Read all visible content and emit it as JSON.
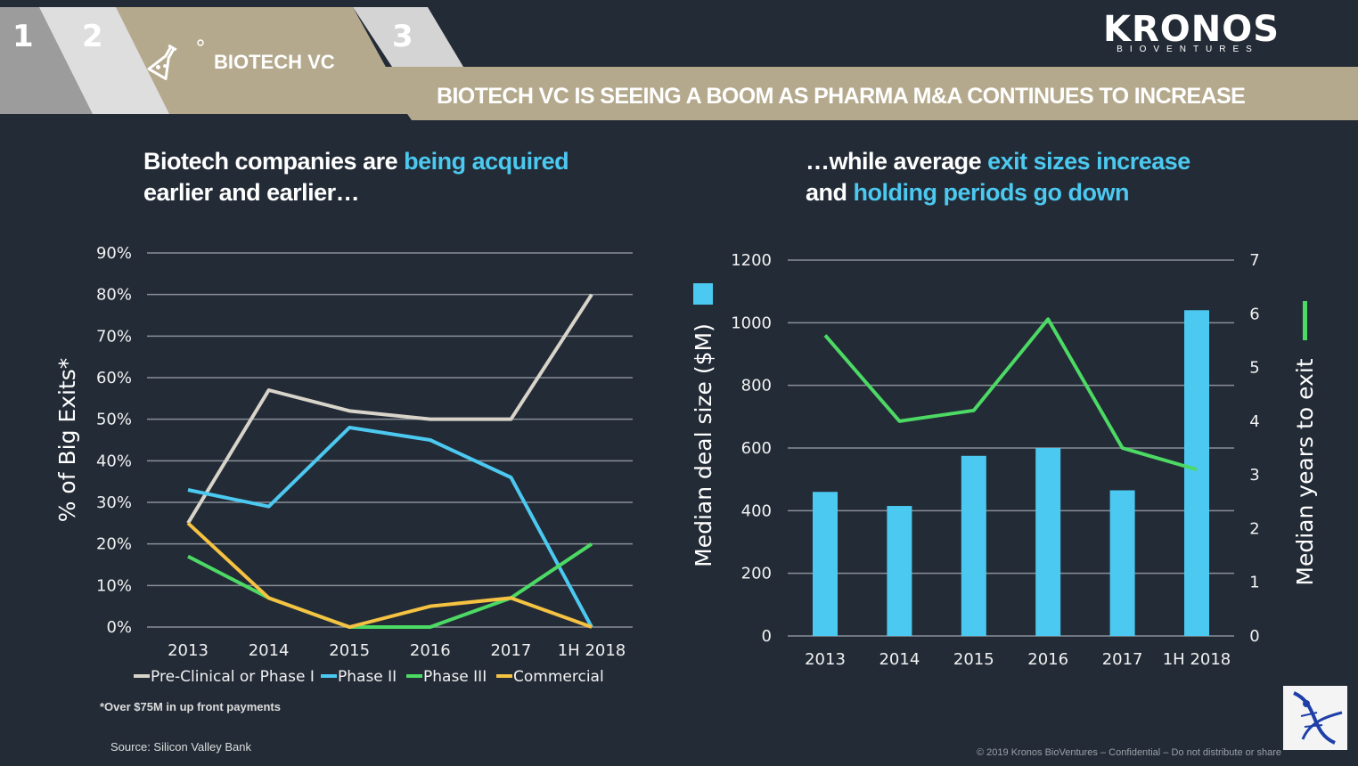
{
  "header": {
    "tabs": [
      "1",
      "2",
      "3"
    ],
    "section_label": "BIOTECH VC",
    "banner_title": "BIOTECH VC IS SEEING A BOOM AS PHARMA M&A CONTINUES TO INCREASE",
    "icon": "flask-icon"
  },
  "logo": {
    "main": "KRONOS",
    "sub": "BIOVENTURES"
  },
  "left_panel": {
    "subtitle_line1_plain": "Biotech companies are ",
    "subtitle_line1_highlight": "being acquired",
    "subtitle_line2": "earlier and earlier…"
  },
  "right_panel": {
    "subtitle_line1_plain": "…while average ",
    "subtitle_line1_highlight": "exit sizes increase",
    "subtitle_line2_plain": "and ",
    "subtitle_line2_highlight": "holding periods go down"
  },
  "colors": {
    "background": "#232b36",
    "accent": "#4cc9f0",
    "header_tan": "#b4a98c",
    "green": "#4cd964",
    "yellow": "#f5c242",
    "grey_line": "#d8d4ca"
  },
  "chart_data": [
    {
      "type": "line",
      "categories": [
        "2013",
        "2014",
        "2015",
        "2016",
        "2017",
        "1H 2018"
      ],
      "ylabel": "% of Big Exits*",
      "xlabel": "",
      "ylim": [
        0,
        90
      ],
      "yticks": [
        "0%",
        "10%",
        "20%",
        "30%",
        "40%",
        "50%",
        "60%",
        "70%",
        "80%",
        "90%"
      ],
      "grid": true,
      "legend_position": "bottom",
      "series": [
        {
          "name": "Pre-Clinical or Phase I",
          "color": "#d8d4ca",
          "values": [
            25,
            57,
            52,
            50,
            50,
            80
          ]
        },
        {
          "name": "Phase II",
          "color": "#4cc9f0",
          "values": [
            33,
            29,
            48,
            45,
            36,
            0
          ]
        },
        {
          "name": "Phase III",
          "color": "#4cd964",
          "values": [
            17,
            7,
            0,
            0,
            7,
            20
          ]
        },
        {
          "name": "Commercial",
          "color": "#f5c242",
          "values": [
            25,
            7,
            0,
            5,
            7,
            0
          ]
        }
      ]
    },
    {
      "type": "bar",
      "categories": [
        "2013",
        "2014",
        "2015",
        "2016",
        "2017",
        "1H 2018"
      ],
      "ylabel": "Median deal size ($M)",
      "ylim": [
        0,
        1200
      ],
      "yticks": [
        "0",
        "200",
        "400",
        "600",
        "800",
        "1000",
        "1200"
      ],
      "values": [
        460,
        415,
        575,
        600,
        465,
        1040
      ],
      "color": "#4cc9f0",
      "y2label": "Median years to exit",
      "y2lim": [
        0,
        7
      ],
      "y2ticks": [
        "0",
        "1",
        "2",
        "3",
        "4",
        "5",
        "6",
        "7"
      ],
      "line_series": {
        "color": "#4cd964",
        "values": [
          5.6,
          4.0,
          4.2,
          5.9,
          3.5,
          3.1
        ]
      },
      "grid": true
    }
  ],
  "footnotes": {
    "note": "*Over $75M in up front payments",
    "source": "Source: Silicon Valley Bank",
    "copyright": "© 2019 Kronos BioVentures – Confidential – Do not distribute or share"
  }
}
